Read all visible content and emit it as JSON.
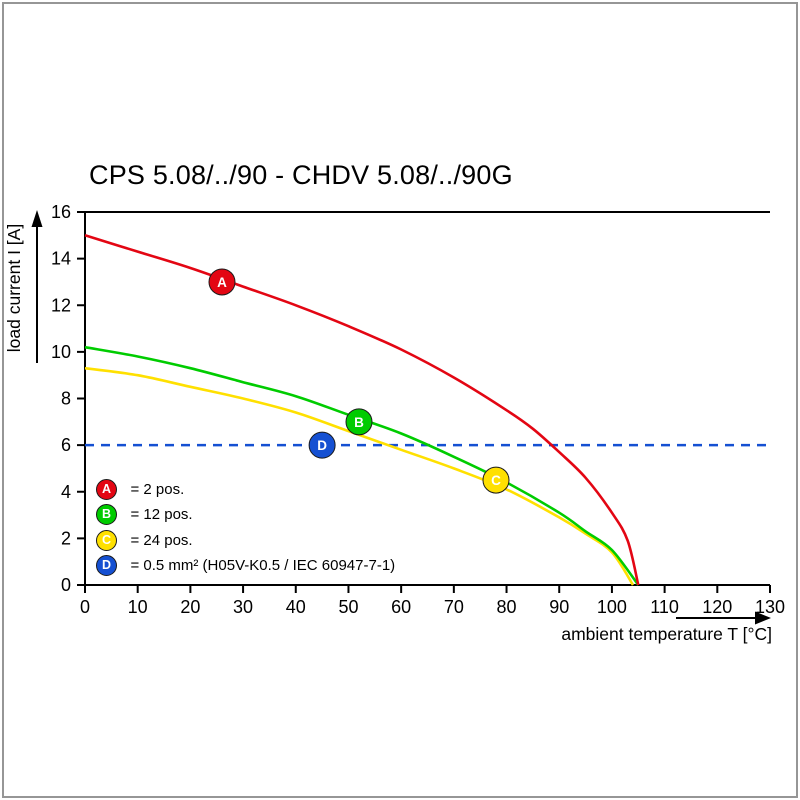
{
  "chart_data": {
    "type": "line",
    "title": "CPS 5.08/../90 - CHDV 5.08/../90G",
    "xlabel": "ambient temperature T [°C]",
    "ylabel": "load current I [A]",
    "xlim": [
      0,
      130
    ],
    "ylim": [
      0,
      16
    ],
    "x_ticks": [
      0,
      10,
      20,
      30,
      40,
      50,
      60,
      70,
      80,
      90,
      100,
      110,
      120,
      130
    ],
    "y_ticks": [
      0,
      2,
      4,
      6,
      8,
      10,
      12,
      14,
      16
    ],
    "grid": false,
    "legend_position": "bottom-left-inside",
    "series": [
      {
        "id": "A",
        "label": "= 2 pos.",
        "color": "#e30613",
        "dashed": false,
        "marker": {
          "x": 26,
          "y": 13
        },
        "points": [
          [
            0,
            15.0
          ],
          [
            10,
            14.3
          ],
          [
            20,
            13.6
          ],
          [
            30,
            12.8
          ],
          [
            40,
            12.0
          ],
          [
            50,
            11.1
          ],
          [
            60,
            10.1
          ],
          [
            70,
            8.9
          ],
          [
            80,
            7.5
          ],
          [
            85,
            6.7
          ],
          [
            90,
            5.7
          ],
          [
            95,
            4.6
          ],
          [
            100,
            3.1
          ],
          [
            103,
            1.9
          ],
          [
            105,
            0
          ]
        ]
      },
      {
        "id": "B",
        "label": "= 12 pos.",
        "color": "#00cc00",
        "dashed": false,
        "marker": {
          "x": 52,
          "y": 7
        },
        "points": [
          [
            0,
            10.2
          ],
          [
            10,
            9.8
          ],
          [
            20,
            9.3
          ],
          [
            30,
            8.7
          ],
          [
            40,
            8.1
          ],
          [
            50,
            7.3
          ],
          [
            60,
            6.5
          ],
          [
            70,
            5.5
          ],
          [
            80,
            4.4
          ],
          [
            90,
            3.1
          ],
          [
            95,
            2.3
          ],
          [
            100,
            1.5
          ],
          [
            105,
            0
          ]
        ]
      },
      {
        "id": "C",
        "label": "= 24 pos.",
        "color": "#ffe000",
        "dashed": false,
        "marker": {
          "x": 78,
          "y": 4.5
        },
        "points": [
          [
            0,
            9.3
          ],
          [
            10,
            9.0
          ],
          [
            20,
            8.5
          ],
          [
            30,
            8.0
          ],
          [
            40,
            7.4
          ],
          [
            50,
            6.6
          ],
          [
            60,
            5.8
          ],
          [
            70,
            5.0
          ],
          [
            80,
            4.1
          ],
          [
            90,
            2.9
          ],
          [
            95,
            2.2
          ],
          [
            100,
            1.4
          ],
          [
            104,
            0
          ]
        ]
      },
      {
        "id": "D",
        "label": "= 0.5 mm² (H05V-K0.5 / IEC 60947-7-1)",
        "color": "#1550d2",
        "dashed": true,
        "marker": {
          "x": 45,
          "y": 6
        },
        "points": [
          [
            0,
            6
          ],
          [
            130,
            6
          ]
        ]
      }
    ]
  }
}
